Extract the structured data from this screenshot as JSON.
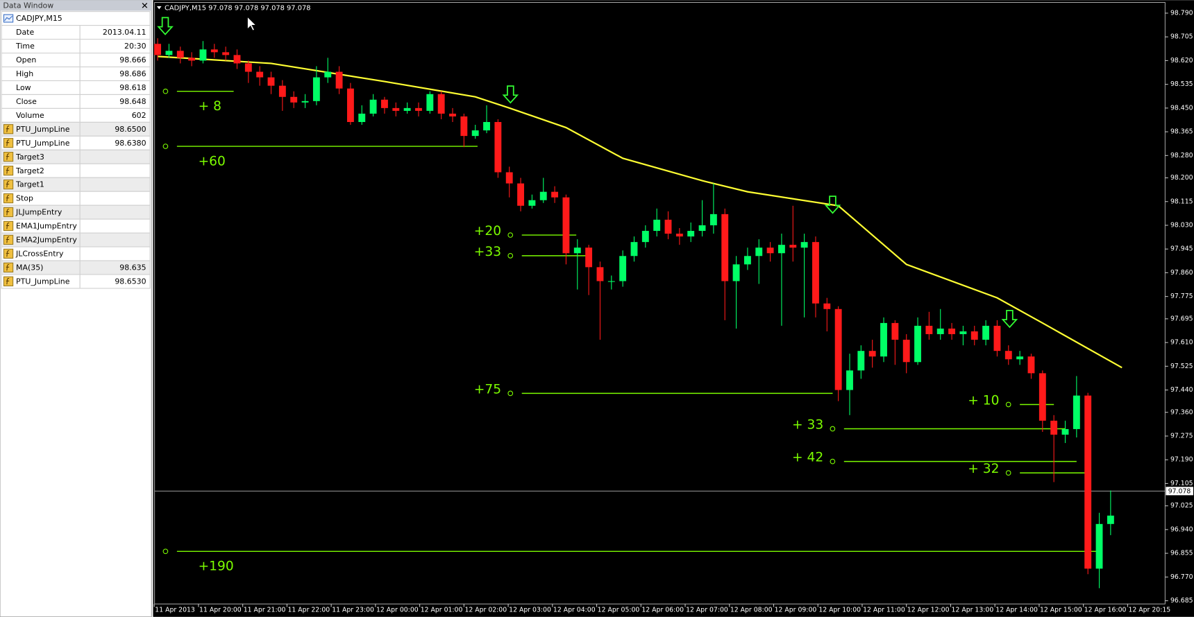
{
  "data_window": {
    "title": "Data Window",
    "symbol": "CADJPY,M15",
    "rows": [
      {
        "label": "Date",
        "value": "2013.04.11"
      },
      {
        "label": "Time",
        "value": "20:30"
      },
      {
        "label": "Open",
        "value": "98.666"
      },
      {
        "label": "High",
        "value": "98.686"
      },
      {
        "label": "Low",
        "value": "98.618"
      },
      {
        "label": "Close",
        "value": "98.648"
      },
      {
        "label": "Volume",
        "value": "602"
      },
      {
        "label": "PTU_JumpLine",
        "value": "98.6500"
      },
      {
        "label": "PTU_JumpLine",
        "value": "98.6380"
      },
      {
        "label": "Target3"
      },
      {
        "label": "Target2"
      },
      {
        "label": "Target1"
      },
      {
        "label": "Stop"
      },
      {
        "label": "JLJumpEntry"
      },
      {
        "label": "EMA1JumpEntry"
      },
      {
        "label": "EMA2JumpEntry"
      },
      {
        "label": "JLCrossEntry"
      },
      {
        "label": "MA(35)",
        "value": "98.635"
      },
      {
        "label": "PTU_JumpLine",
        "value": "98.6530"
      }
    ]
  },
  "chart_data": {
    "type": "candlestick",
    "header": "CADJPY,M15  97.078 97.078 97.078 97.078",
    "background": "#000000",
    "up_color": "#00ff66",
    "down_color": "#ff1a1a",
    "ma_color": "#ffff33",
    "target_color": "#7cfc00",
    "arrow_color": "#33ff33",
    "grid": false,
    "candles": {
      "open": [
        98.68,
        98.64,
        98.655,
        98.63,
        98.62,
        98.66,
        98.65,
        98.64,
        98.61,
        98.58,
        98.56,
        98.53,
        98.49,
        98.47,
        98.475,
        98.56,
        98.58,
        98.52,
        98.4,
        98.43,
        98.48,
        98.45,
        98.44,
        98.45,
        98.44,
        98.5,
        98.43,
        98.42,
        98.35,
        98.37,
        98.4,
        98.22,
        98.18,
        98.1,
        98.12,
        98.15,
        98.13,
        97.93,
        97.95,
        97.88,
        97.83,
        97.83,
        97.92,
        97.97,
        98.01,
        98.05,
        98.0,
        97.99,
        98.01,
        98.03,
        98.07,
        97.83,
        97.89,
        97.92,
        97.95,
        97.93,
        97.96,
        97.95,
        97.97,
        97.75,
        97.73,
        97.44,
        97.51,
        97.58,
        97.56,
        97.68,
        97.62,
        97.54,
        97.67,
        97.64,
        97.66,
        97.64,
        97.65,
        97.62,
        97.67,
        97.58,
        97.55,
        97.56,
        97.5,
        97.33,
        97.28,
        97.3,
        97.42,
        96.8,
        96.96
      ],
      "high": [
        98.7,
        98.68,
        98.67,
        98.65,
        98.69,
        98.68,
        98.67,
        98.66,
        98.62,
        98.6,
        98.58,
        98.55,
        98.51,
        98.5,
        98.6,
        98.63,
        98.6,
        98.54,
        98.46,
        98.5,
        98.49,
        98.47,
        98.47,
        98.47,
        98.51,
        98.51,
        98.45,
        98.43,
        98.39,
        98.46,
        98.41,
        98.24,
        98.2,
        98.14,
        98.2,
        98.17,
        98.14,
        97.98,
        97.96,
        97.9,
        97.85,
        97.94,
        97.99,
        98.03,
        98.09,
        98.08,
        98.02,
        98.04,
        98.12,
        98.18,
        98.09,
        97.92,
        97.95,
        97.98,
        97.97,
        98.0,
        98.1,
        98.0,
        97.99,
        97.77,
        97.74,
        97.57,
        97.6,
        97.62,
        97.7,
        97.69,
        97.64,
        97.7,
        97.72,
        97.73,
        97.68,
        97.67,
        97.67,
        97.69,
        97.69,
        97.6,
        97.58,
        97.57,
        97.51,
        97.35,
        97.33,
        97.49,
        97.43,
        97.0,
        97.08
      ],
      "low": [
        98.62,
        98.63,
        98.61,
        98.6,
        98.61,
        98.63,
        98.62,
        98.59,
        98.54,
        98.53,
        98.5,
        98.44,
        98.45,
        98.45,
        98.46,
        98.54,
        98.5,
        98.39,
        98.39,
        98.42,
        98.43,
        98.42,
        98.43,
        98.42,
        98.43,
        98.41,
        98.4,
        98.31,
        98.34,
        98.36,
        98.2,
        98.13,
        98.08,
        98.09,
        98.11,
        98.11,
        97.89,
        97.8,
        97.78,
        97.62,
        97.8,
        97.81,
        97.9,
        97.95,
        97.99,
        97.98,
        97.96,
        97.97,
        97.99,
        98.0,
        97.69,
        97.66,
        97.87,
        97.82,
        97.9,
        97.67,
        97.9,
        97.7,
        97.7,
        97.65,
        97.4,
        97.35,
        97.48,
        97.52,
        97.54,
        97.53,
        97.5,
        97.53,
        97.62,
        97.62,
        97.62,
        97.6,
        97.6,
        97.6,
        97.56,
        97.53,
        97.53,
        97.48,
        97.29,
        97.11,
        97.25,
        97.27,
        96.78,
        96.73,
        96.92
      ],
      "close": [
        98.64,
        98.655,
        98.63,
        98.62,
        98.66,
        98.65,
        98.64,
        98.61,
        98.58,
        98.56,
        98.53,
        98.49,
        98.47,
        98.475,
        98.56,
        98.58,
        98.52,
        98.4,
        98.43,
        98.48,
        98.45,
        98.44,
        98.45,
        98.44,
        98.5,
        98.43,
        98.42,
        98.35,
        98.37,
        98.4,
        98.22,
        98.18,
        98.1,
        98.12,
        98.15,
        98.13,
        97.93,
        97.95,
        97.88,
        97.83,
        97.83,
        97.92,
        97.97,
        98.01,
        98.05,
        98.0,
        97.99,
        98.01,
        98.03,
        98.07,
        97.83,
        97.89,
        97.92,
        97.95,
        97.93,
        97.96,
        97.95,
        97.97,
        97.75,
        97.73,
        97.44,
        97.51,
        97.58,
        97.56,
        97.68,
        97.62,
        97.54,
        97.67,
        97.64,
        97.66,
        97.64,
        97.65,
        97.62,
        97.67,
        97.58,
        97.55,
        97.56,
        97.5,
        97.33,
        97.28,
        97.3,
        97.42,
        96.8,
        96.96,
        96.99
      ]
    },
    "ma": {
      "x": [
        0,
        10,
        20,
        28,
        31,
        36,
        41,
        48,
        52,
        60,
        66,
        74,
        78,
        85
      ],
      "values": [
        98.635,
        98.61,
        98.545,
        98.49,
        98.45,
        98.38,
        98.27,
        98.19,
        98.15,
        98.1,
        97.89,
        97.77,
        97.68,
        97.52
      ]
    },
    "current_price": 97.078,
    "signals": [
      {
        "x": 0.67,
        "price": 98.714
      },
      {
        "x": 31.1,
        "price": 98.469
      },
      {
        "x": 59.5,
        "price": 98.074
      },
      {
        "x": 75.1,
        "price": 97.665
      }
    ],
    "targets": [
      {
        "label": "+ 8",
        "price": 98.51,
        "from": 1.7,
        "to": 6.7
      },
      {
        "label": "+60",
        "price": 98.313,
        "from": 1.7,
        "to": 28.2
      },
      {
        "label": "+20",
        "price": 97.995,
        "from": 32.1,
        "to": 36.9
      },
      {
        "label": "+33",
        "price": 97.921,
        "from": 32.1,
        "to": 37.8
      },
      {
        "label": "+75",
        "price": 97.428,
        "from": 32.1,
        "to": 59.5
      },
      {
        "label": "+190",
        "price": 96.862,
        "from": 1.7,
        "to": 82.8
      },
      {
        "label": "+ 10",
        "price": 97.388,
        "from": 76,
        "to": 79
      },
      {
        "label": "+ 33",
        "price": 97.301,
        "from": 60.5,
        "to": 80
      },
      {
        "label": "+ 42",
        "price": 97.184,
        "from": 60.5,
        "to": 81
      },
      {
        "label": "+ 32",
        "price": 97.143,
        "from": 76,
        "to": 82
      }
    ],
    "xlim": [
      -0.27,
      88.8
    ],
    "xticks": [
      {
        "value": -0.3,
        "label": "11 Apr 2013"
      },
      {
        "value": 3.6,
        "label": "11 Apr 20:00"
      },
      {
        "value": 7.5,
        "label": "11 Apr 21:00"
      },
      {
        "value": 11.4,
        "label": "11 Apr 22:00"
      },
      {
        "value": 15.3,
        "label": "11 Apr 23:00"
      },
      {
        "value": 19.2,
        "label": "12 Apr 00:00"
      },
      {
        "value": 23.1,
        "label": "12 Apr 01:00"
      },
      {
        "value": 27.0,
        "label": "12 Apr 02:00"
      },
      {
        "value": 30.9,
        "label": "12 Apr 03:00"
      },
      {
        "value": 34.8,
        "label": "12 Apr 04:00"
      },
      {
        "value": 38.7,
        "label": "12 Apr 05:00"
      },
      {
        "value": 42.6,
        "label": "12 Apr 06:00"
      },
      {
        "value": 46.5,
        "label": "12 Apr 07:00"
      },
      {
        "value": 50.4,
        "label": "12 Apr 08:00"
      },
      {
        "value": 54.3,
        "label": "12 Apr 09:00"
      },
      {
        "value": 58.2,
        "label": "12 Apr 10:00"
      },
      {
        "value": 62.1,
        "label": "12 Apr 11:00"
      },
      {
        "value": 66.0,
        "label": "12 Apr 12:00"
      },
      {
        "value": 69.9,
        "label": "12 Apr 13:00"
      },
      {
        "value": 73.8,
        "label": "12 Apr 14:00"
      },
      {
        "value": 77.7,
        "label": "12 Apr 15:00"
      },
      {
        "value": 81.6,
        "label": "12 Apr 16:00"
      },
      {
        "value": 85.5,
        "label": "12 Apr 20:15"
      }
    ],
    "ylim": [
      96.679,
      98.823
    ],
    "yticks": [
      {
        "value": 98.79,
        "label": "98.790"
      },
      98.705,
      {
        "value": 98.62,
        "label": "98.620"
      },
      98.535,
      {
        "value": 98.45,
        "label": "98.450"
      },
      98.365,
      {
        "value": 98.28,
        "label": "98.280"
      },
      {
        "value": 98.2,
        "label": "98.200"
      },
      98.115,
      {
        "value": 98.03,
        "label": "98.030"
      },
      97.945,
      {
        "value": 97.86,
        "label": "97.860"
      },
      97.775,
      97.695,
      {
        "value": 97.61,
        "label": "97.610"
      },
      97.525,
      {
        "value": 97.44,
        "label": "97.440"
      },
      {
        "value": 97.36,
        "label": "97.360"
      },
      97.275,
      {
        "value": 97.19,
        "label": "97.190"
      },
      97.105,
      97.025,
      {
        "value": 96.94,
        "label": "96.940"
      },
      96.855,
      {
        "value": 96.77,
        "label": "96.770"
      },
      96.685
    ]
  }
}
